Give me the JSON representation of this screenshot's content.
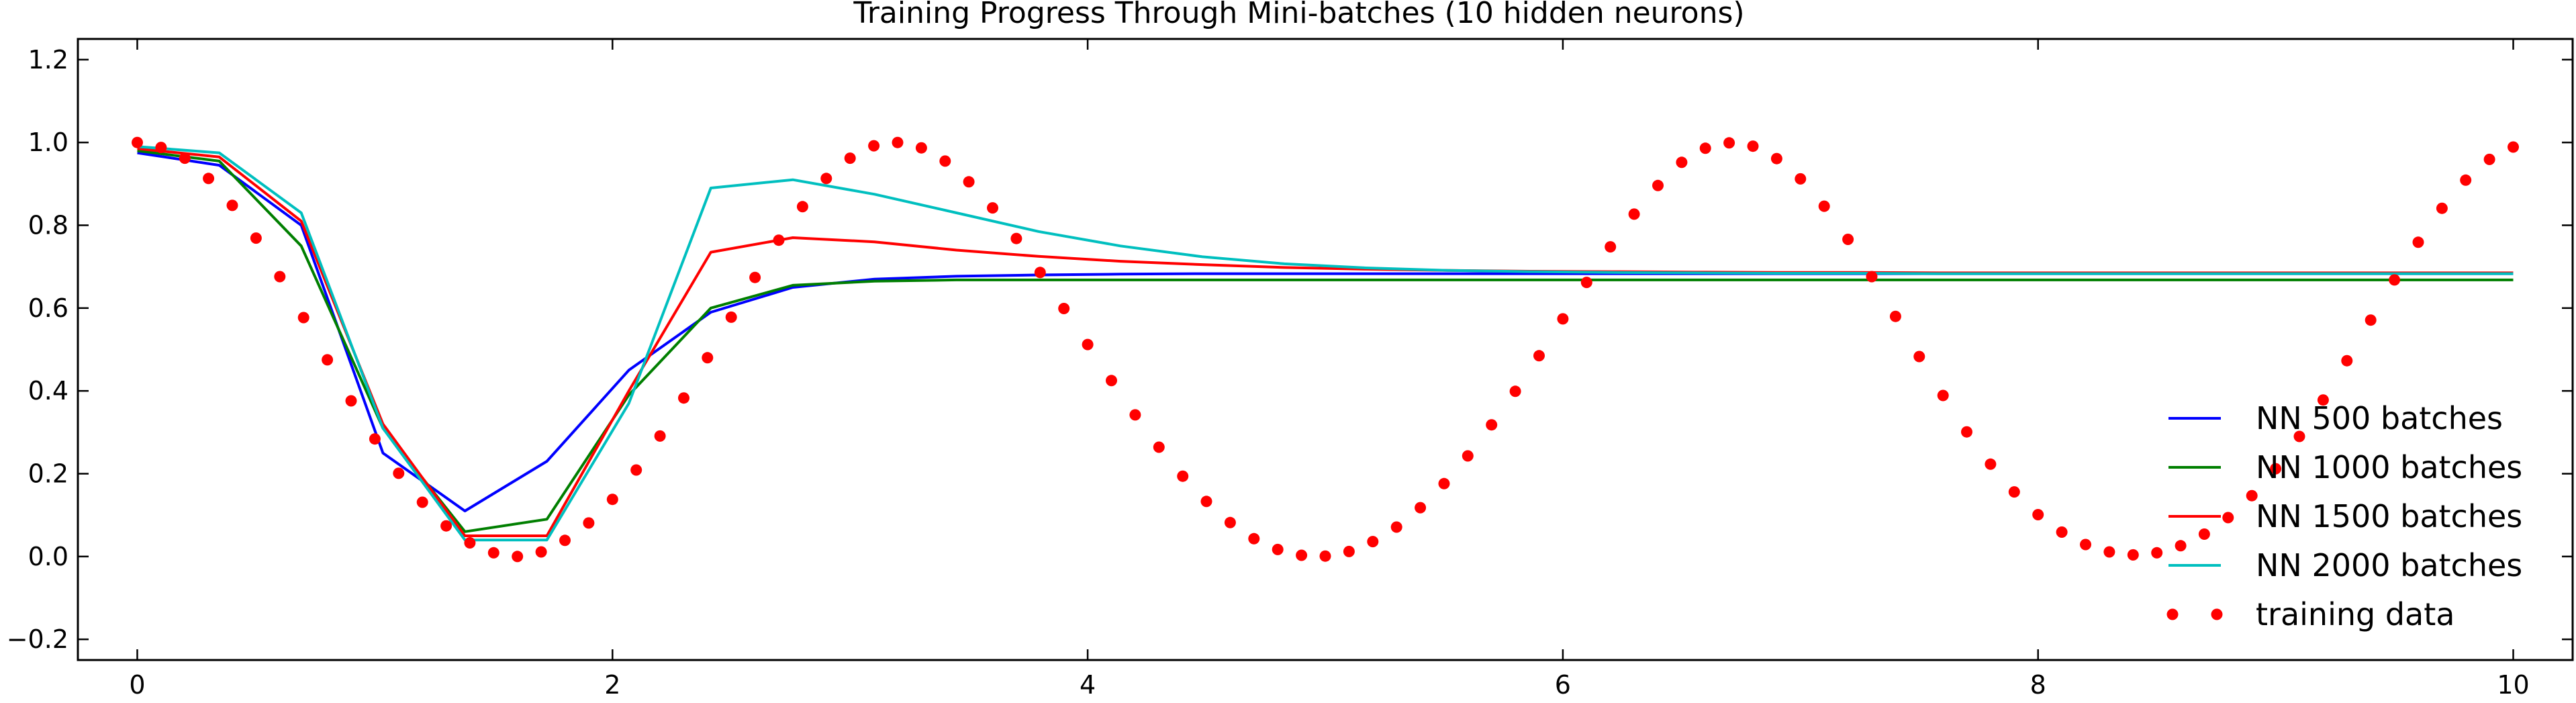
{
  "chart_data": {
    "type": "line",
    "title": "Training Progress Through Mini-batches (10 hidden neurons)",
    "xlabel": "",
    "ylabel": "",
    "xlim": [
      -0.25,
      10.25
    ],
    "ylim": [
      -0.25,
      1.25
    ],
    "xticks": [
      0,
      2,
      4,
      6,
      8,
      10
    ],
    "yticks": [
      -0.2,
      0.0,
      0.2,
      0.4,
      0.6,
      0.8,
      1.0,
      1.2
    ],
    "xtick_labels": [
      "0",
      "2",
      "4",
      "6",
      "8",
      "10"
    ],
    "ytick_labels": [
      "−0.2",
      "0.0",
      "0.2",
      "0.4",
      "0.6",
      "0.8",
      "1.0",
      "1.2"
    ],
    "grid": false,
    "legend_position": "lower-right",
    "series": [
      {
        "name": "NN 500 batches",
        "color": "#0000ff",
        "style": "line",
        "x": [
          0,
          0.345,
          0.69,
          1.034,
          1.379,
          1.724,
          2.069,
          2.414,
          2.759,
          3.103,
          3.448,
          3.793,
          4.138,
          4.483,
          4.828,
          5.172,
          5.517,
          5.862,
          6.207,
          6.552,
          6.897,
          7.241,
          7.586,
          7.931,
          8.276,
          8.621,
          8.966,
          9.31,
          9.655,
          10
        ],
        "y": [
          0.975,
          0.945,
          0.8,
          0.25,
          0.11,
          0.23,
          0.45,
          0.59,
          0.65,
          0.67,
          0.677,
          0.68,
          0.682,
          0.683,
          0.683,
          0.683,
          0.683,
          0.683,
          0.683,
          0.683,
          0.683,
          0.683,
          0.683,
          0.683,
          0.683,
          0.683,
          0.683,
          0.683,
          0.683,
          0.683
        ]
      },
      {
        "name": "NN 1000 batches",
        "color": "#007f00",
        "style": "line",
        "x": [
          0,
          0.345,
          0.69,
          1.034,
          1.379,
          1.724,
          2.069,
          2.414,
          2.759,
          3.103,
          3.448,
          3.793,
          4.138,
          4.483,
          4.828,
          5.172,
          5.517,
          5.862,
          6.207,
          6.552,
          6.897,
          7.241,
          7.586,
          7.931,
          8.276,
          8.621,
          8.966,
          9.31,
          9.655,
          10
        ],
        "y": [
          0.98,
          0.955,
          0.75,
          0.31,
          0.06,
          0.09,
          0.39,
          0.6,
          0.655,
          0.665,
          0.668,
          0.668,
          0.668,
          0.668,
          0.668,
          0.668,
          0.668,
          0.668,
          0.668,
          0.668,
          0.668,
          0.668,
          0.668,
          0.668,
          0.668,
          0.668,
          0.668,
          0.668,
          0.668,
          0.668
        ]
      },
      {
        "name": "NN 1500 batches",
        "color": "#ff0000",
        "style": "line",
        "x": [
          0,
          0.345,
          0.69,
          1.034,
          1.379,
          1.724,
          2.069,
          2.414,
          2.759,
          3.103,
          3.448,
          3.793,
          4.138,
          4.483,
          4.828,
          5.172,
          5.517,
          5.862,
          6.207,
          6.552,
          6.897,
          7.241,
          7.586,
          7.931,
          8.276,
          8.621,
          8.966,
          9.31,
          9.655,
          10
        ],
        "y": [
          0.985,
          0.965,
          0.81,
          0.32,
          0.05,
          0.05,
          0.4,
          0.735,
          0.77,
          0.76,
          0.74,
          0.725,
          0.713,
          0.705,
          0.698,
          0.694,
          0.691,
          0.689,
          0.688,
          0.687,
          0.686,
          0.686,
          0.685,
          0.685,
          0.685,
          0.685,
          0.685,
          0.685,
          0.685,
          0.685
        ]
      },
      {
        "name": "NN 2000 batches",
        "color": "#00bfbf",
        "style": "line",
        "x": [
          0,
          0.345,
          0.69,
          1.034,
          1.379,
          1.724,
          2.069,
          2.414,
          2.759,
          3.103,
          3.448,
          3.793,
          4.138,
          4.483,
          4.828,
          5.172,
          5.517,
          5.862,
          6.207,
          6.552,
          6.897,
          7.241,
          7.586,
          7.931,
          8.276,
          8.621,
          8.966,
          9.31,
          9.655,
          10
        ],
        "y": [
          0.99,
          0.975,
          0.83,
          0.31,
          0.04,
          0.04,
          0.37,
          0.89,
          0.91,
          0.875,
          0.83,
          0.785,
          0.75,
          0.724,
          0.707,
          0.697,
          0.691,
          0.688,
          0.686,
          0.685,
          0.684,
          0.684,
          0.683,
          0.683,
          0.683,
          0.683,
          0.683,
          0.683,
          0.683,
          0.683
        ]
      },
      {
        "name": "training data",
        "color": "#ff0000",
        "style": "dots",
        "x": [
          0,
          0.1,
          0.2,
          0.3,
          0.4,
          0.5,
          0.6,
          0.7,
          0.8,
          0.9,
          1.0,
          1.1,
          1.2,
          1.3,
          1.4,
          1.5,
          1.6,
          1.7,
          1.8,
          1.9,
          2.0,
          2.1,
          2.2,
          2.3,
          2.4,
          2.5,
          2.6,
          2.7,
          2.8,
          2.9,
          3.0,
          3.1,
          3.2,
          3.3,
          3.4,
          3.5,
          3.6,
          3.7,
          3.8,
          3.9,
          4.0,
          4.1,
          4.2,
          4.3,
          4.4,
          4.5,
          4.6,
          4.7,
          4.8,
          4.9,
          5.0,
          5.1,
          5.2,
          5.3,
          5.4,
          5.5,
          5.6,
          5.7,
          5.8,
          5.9,
          6.0,
          6.1,
          6.2,
          6.3,
          6.4,
          6.5,
          6.6,
          6.7,
          6.8,
          6.9,
          7.0,
          7.1,
          7.2,
          7.3,
          7.4,
          7.5,
          7.6,
          7.7,
          7.8,
          7.9,
          8.0,
          8.1,
          8.2,
          8.3,
          8.4,
          8.5,
          8.6,
          8.7,
          8.8,
          8.9,
          9.0,
          9.1,
          9.2,
          9.3,
          9.4,
          9.5,
          9.6,
          9.7,
          9.8,
          9.9,
          10.0
        ],
        "y": [
          1.0,
          0.988,
          0.962,
          0.913,
          0.848,
          0.769,
          0.676,
          0.577,
          0.475,
          0.376,
          0.284,
          0.201,
          0.131,
          0.074,
          0.033,
          0.009,
          0.0,
          0.011,
          0.039,
          0.081,
          0.138,
          0.209,
          0.291,
          0.383,
          0.48,
          0.578,
          0.674,
          0.764,
          0.845,
          0.913,
          0.962,
          0.992,
          1.0,
          0.987,
          0.955,
          0.905,
          0.842,
          0.768,
          0.686,
          0.599,
          0.512,
          0.425,
          0.342,
          0.264,
          0.194,
          0.133,
          0.082,
          0.043,
          0.017,
          0.003,
          0.001,
          0.012,
          0.036,
          0.071,
          0.118,
          0.176,
          0.243,
          0.318,
          0.399,
          0.485,
          0.574,
          0.662,
          0.748,
          0.827,
          0.896,
          0.952,
          0.986,
          0.999,
          0.991,
          0.961,
          0.912,
          0.846,
          0.766,
          0.676,
          0.58,
          0.483,
          0.389,
          0.301,
          0.223,
          0.156,
          0.101,
          0.059,
          0.029,
          0.011,
          0.004,
          0.009,
          0.026,
          0.054,
          0.094,
          0.147,
          0.212,
          0.29,
          0.378,
          0.473,
          0.571,
          0.668,
          0.759,
          0.841,
          0.909,
          0.959,
          0.989
        ]
      }
    ]
  }
}
